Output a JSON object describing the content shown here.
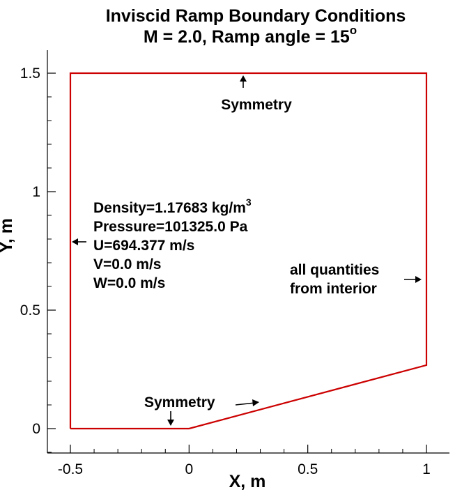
{
  "chart_data": {
    "type": "line",
    "title_line1": "Inviscid Ramp Boundary Conditions",
    "title_line2": "M = 2.0, Ramp angle = 15",
    "title_degree": "o",
    "xlabel": "X, m",
    "ylabel": "Y, m",
    "xlim": [
      -0.5,
      1.0
    ],
    "ylim": [
      0.0,
      1.5
    ],
    "x_ticks": [
      -0.5,
      0,
      0.5,
      1
    ],
    "x_tick_labels": [
      "-0.5",
      "0",
      "0.5",
      "1"
    ],
    "y_ticks": [
      0,
      0.5,
      1,
      1.5
    ],
    "y_tick_labels": [
      "0",
      "0.5",
      "1",
      "1.5"
    ],
    "grid": false,
    "series": [
      {
        "color": "#cc0000",
        "x": [
          -0.5,
          0.0,
          1.0,
          1.0,
          -0.5,
          -0.5
        ],
        "y": [
          0.0,
          0.0,
          0.268,
          1.5,
          1.5,
          0.0
        ]
      }
    ],
    "annotations": {
      "top_symmetry": "Symmetry",
      "bottom_symmetry": "Symmetry",
      "inlet": {
        "density_text": "Density=1.17683 kg/m",
        "density_sup": "3",
        "pressure": "Pressure=101325.0 Pa",
        "u": "U=694.377 m/s",
        "v": "V=0.0 m/s",
        "w": "W=0.0 m/s"
      },
      "outlet_line1": "all quantities",
      "outlet_line2": "from interior"
    }
  }
}
